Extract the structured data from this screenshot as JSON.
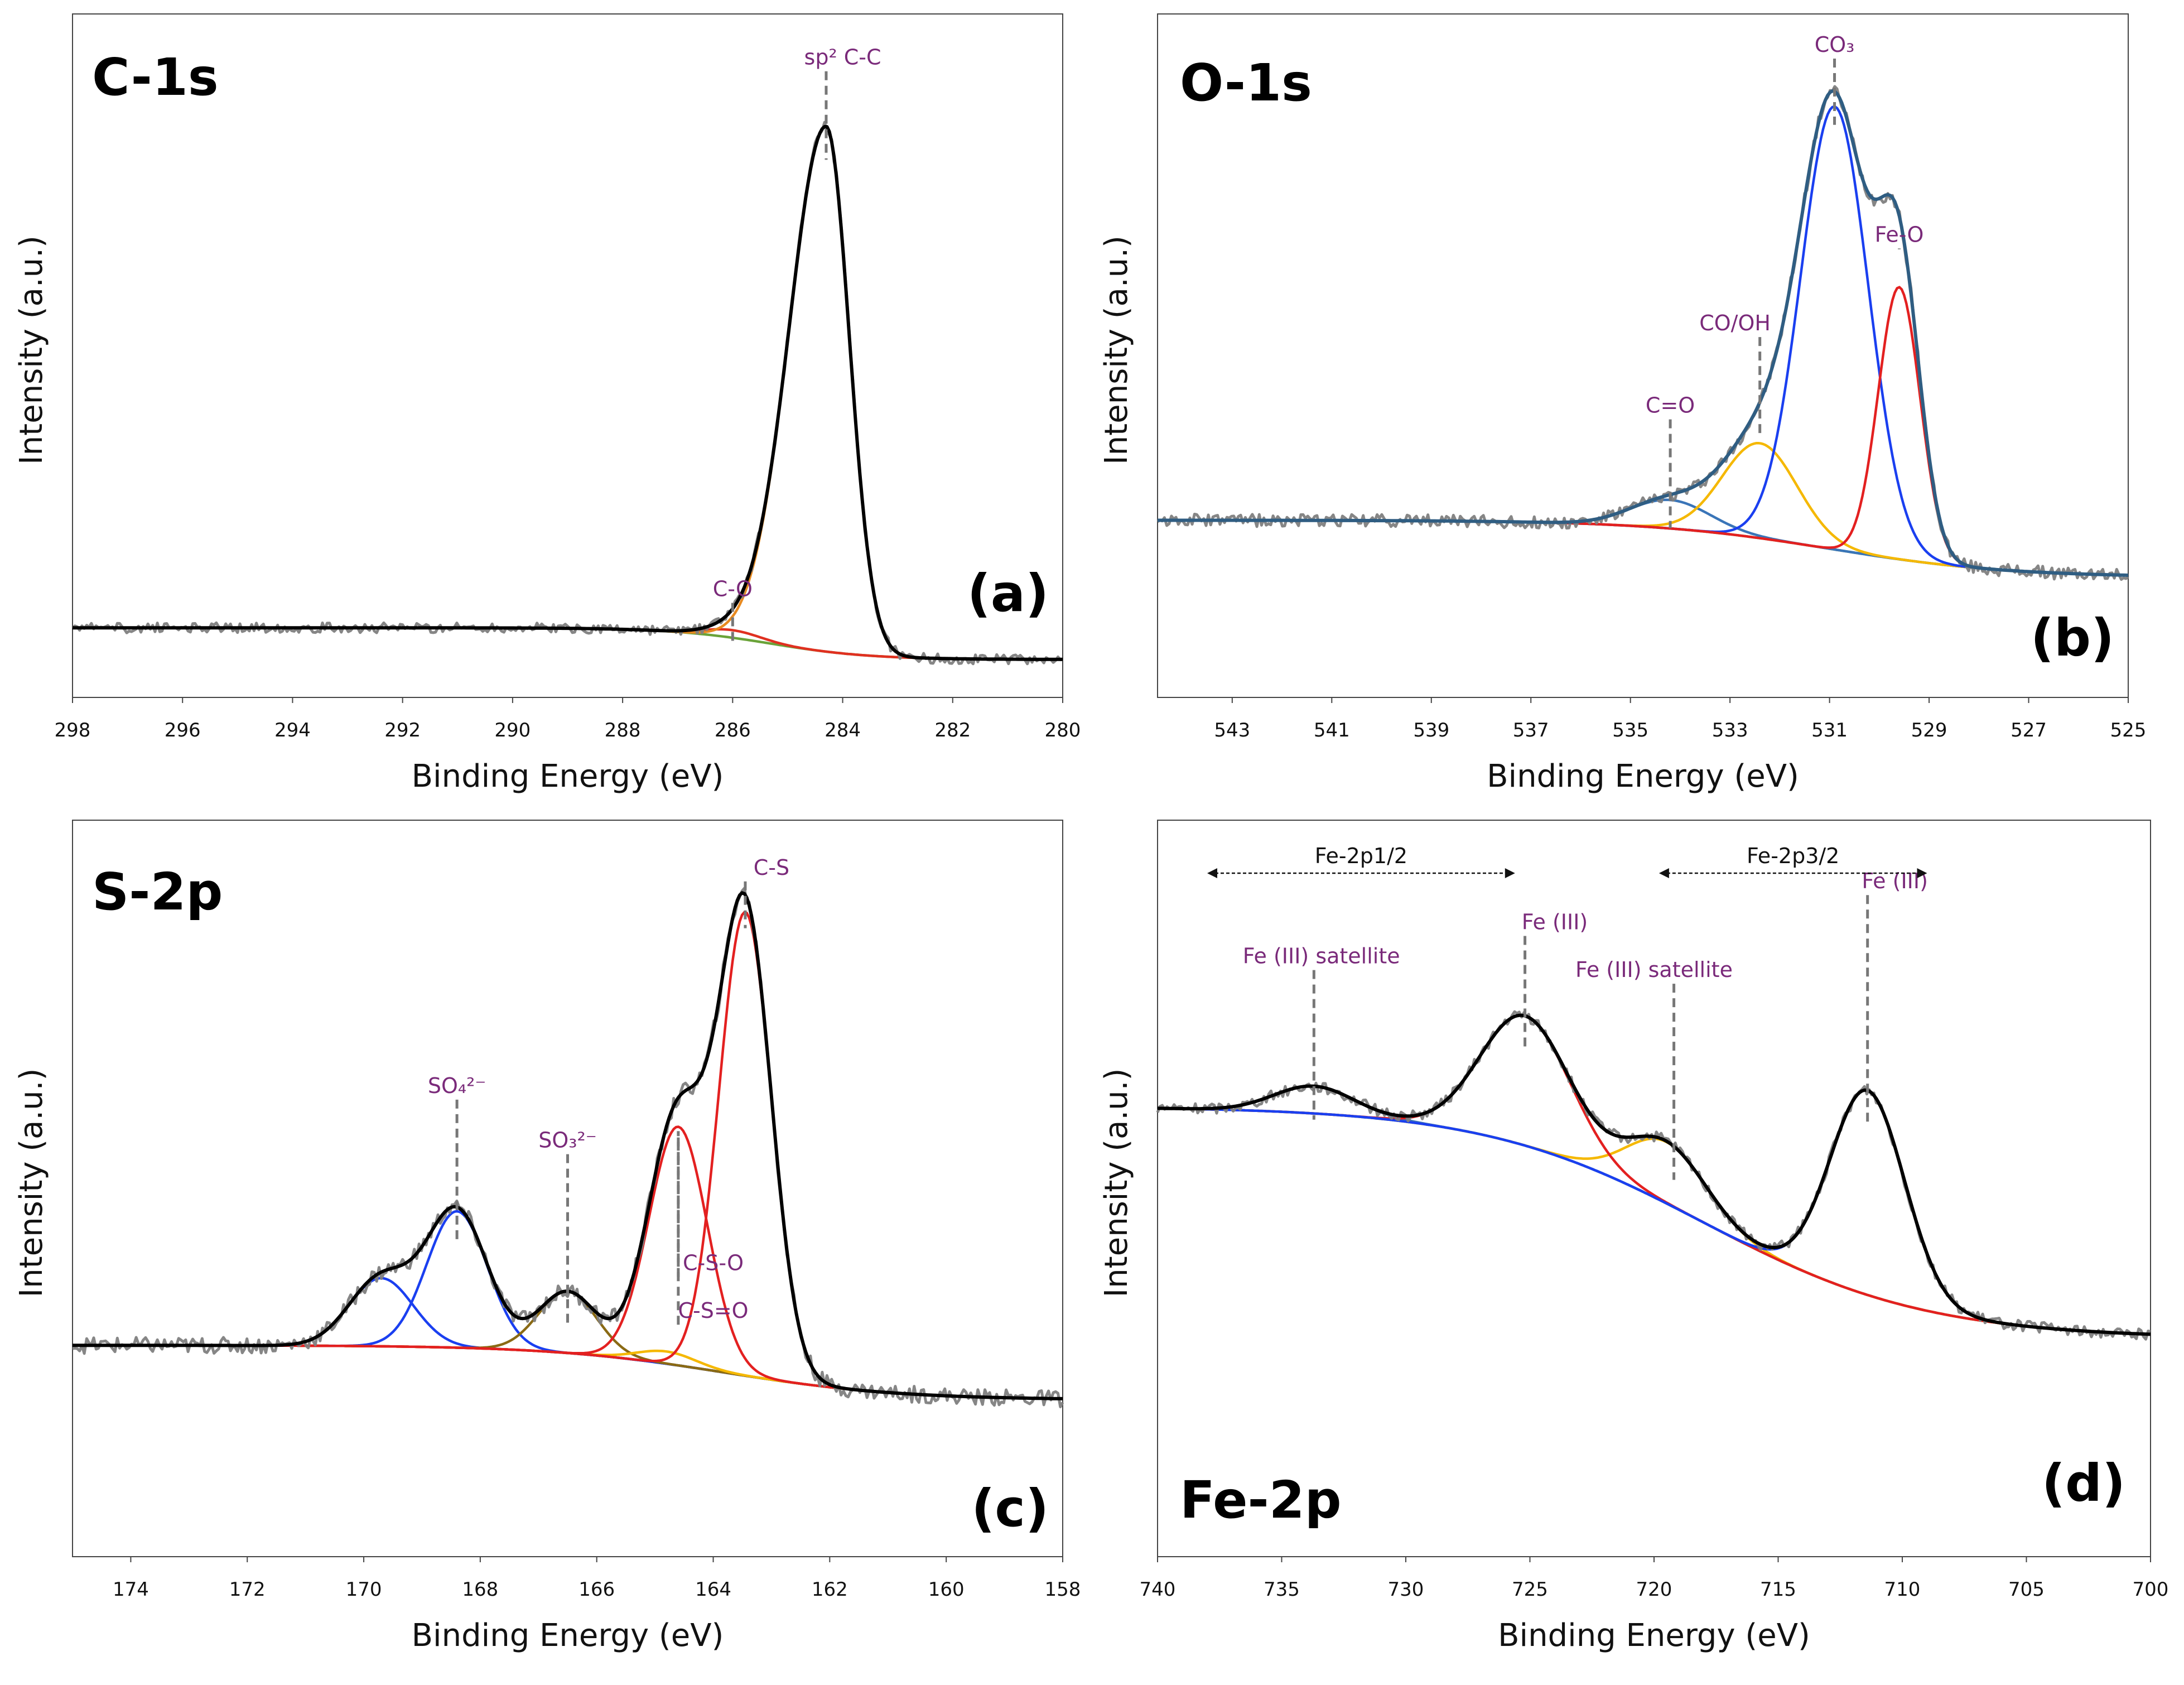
{
  "chart_data": [
    {
      "type": "line",
      "panel_name": "C-1s",
      "panel_letter": "(a)",
      "xlabel": "Binding Energy (eV)",
      "ylabel": "Intensity (a.u.)",
      "xlim": [
        298,
        280
      ],
      "ylim": [
        0,
        1.08
      ],
      "xticks": [
        "298",
        "296",
        "294",
        "292",
        "290",
        "288",
        "286",
        "284",
        "282",
        "280"
      ],
      "series": [
        {
          "name": "background",
          "color": "#6aa339",
          "kind": "background",
          "params": {
            "hi": 0.11,
            "lo": 0.06,
            "center": 285.3,
            "width": 0.9
          }
        },
        {
          "name": "C-O",
          "color": "#e03020",
          "kind": "peak",
          "params": {
            "center": 286.0,
            "amp": 0.012,
            "sigma": 0.5,
            "ref": "background"
          }
        },
        {
          "name": "sp2 C-C",
          "color": "#e88a20",
          "kind": "peak",
          "params": {
            "center": 284.3,
            "amp": 0.83,
            "sigma": 0.42,
            "tail": 1.6,
            "ref": "background"
          }
        },
        {
          "name": "envelope",
          "color": "#000000",
          "kind": "envelope"
        },
        {
          "name": "raw",
          "color": "#808080",
          "kind": "raw",
          "params": {
            "noise": 0.008
          }
        }
      ],
      "annotations": [
        {
          "text": "sp² C-C",
          "x": 284.3,
          "label_x": 284.0,
          "label_y": 1.0
        },
        {
          "text": "C-O",
          "x": 286.0,
          "label_x": 286.0,
          "label_y": 0.16
        }
      ]
    },
    {
      "type": "line",
      "panel_name": "O-1s",
      "panel_letter": "(b)",
      "xlabel": "Binding Energy  (eV)",
      "ylabel": "Intensity (a.u.)",
      "xlim": [
        544.5,
        525
      ],
      "ylim": [
        0,
        1.08
      ],
      "xticks": [
        "543",
        "541",
        "539",
        "537",
        "535",
        "533",
        "531",
        "529",
        "527",
        "525"
      ],
      "series": [
        {
          "name": "background",
          "color": "#6aa339",
          "kind": "background",
          "params": {
            "hi": 0.28,
            "lo": 0.19,
            "center": 531.0,
            "width": 1.8
          }
        },
        {
          "name": "C=O",
          "color": "#3a75b8",
          "kind": "peak",
          "params": {
            "center": 534.2,
            "amp": 0.045,
            "sigma": 0.8,
            "ref": "background"
          }
        },
        {
          "name": "CO/OH",
          "color": "#f5b800",
          "kind": "peak",
          "params": {
            "center": 532.4,
            "amp": 0.15,
            "sigma": 0.75,
            "ref": "background"
          }
        },
        {
          "name": "CO3",
          "color": "#1a3ff0",
          "kind": "peak",
          "params": {
            "center": 530.9,
            "amp": 0.7,
            "sigma": 0.68,
            "ref": "background"
          }
        },
        {
          "name": "Fe-O",
          "color": "#e32020",
          "kind": "peak",
          "params": {
            "center": 529.6,
            "amp": 0.43,
            "sigma": 0.42,
            "ref": "background"
          }
        },
        {
          "name": "envelope",
          "color": "#2f5d82",
          "kind": "envelope"
        },
        {
          "name": "raw",
          "color": "#808080",
          "kind": "raw",
          "params": {
            "noise": 0.01
          }
        }
      ],
      "annotations": [
        {
          "text": "CO₃",
          "x": 530.9,
          "label_x": 530.9,
          "label_y": 1.02
        },
        {
          "text": "Fe-O",
          "x": 529.6,
          "label_x": 529.6,
          "label_y": 0.72
        },
        {
          "text": "CO/OH",
          "x": 532.4,
          "label_x": 532.9,
          "label_y": 0.58
        },
        {
          "text": "C=O",
          "x": 534.2,
          "label_x": 534.2,
          "label_y": 0.45
        }
      ]
    },
    {
      "type": "line",
      "panel_name": "S-2p",
      "panel_letter": "(c)",
      "xlabel": "Binding Energy (eV)",
      "ylabel": "Intensity (a.u.)",
      "xlim": [
        175,
        158
      ],
      "ylim": [
        0,
        1.08
      ],
      "xticks": [
        "174",
        "172",
        "170",
        "168",
        "166",
        "164",
        "162",
        "160",
        "158"
      ],
      "series": [
        {
          "name": "background",
          "color": "#8a6a14",
          "kind": "background",
          "params": {
            "hi": 0.31,
            "lo": 0.23,
            "center": 163.8,
            "width": 1.5
          }
        },
        {
          "name": "SO4 2- (a)",
          "color": "#1a3ff0",
          "kind": "peak",
          "params": {
            "center": 169.7,
            "amp": 0.1,
            "sigma": 0.55,
            "ref": "background"
          }
        },
        {
          "name": "SO4 2- (b)",
          "color": "#1a3ff0",
          "kind": "peak",
          "params": {
            "center": 168.4,
            "amp": 0.2,
            "sigma": 0.52,
            "ref": "background"
          }
        },
        {
          "name": "SO3 2-",
          "color": "#8a6a14",
          "kind": "peak",
          "params": {
            "center": 166.5,
            "amp": 0.09,
            "sigma": 0.5,
            "ref": "background"
          }
        },
        {
          "name": "C-S=O",
          "color": "#f5b800",
          "kind": "peak",
          "params": {
            "center": 164.8,
            "amp": 0.018,
            "sigma": 0.5,
            "ref": "background"
          }
        },
        {
          "name": "C-S-O",
          "color": "#e32020",
          "kind": "peak",
          "params": {
            "center": 164.6,
            "amp": 0.35,
            "sigma": 0.5,
            "ref": "background"
          }
        },
        {
          "name": "C-S",
          "color": "#e32020",
          "kind": "peak",
          "params": {
            "center": 163.45,
            "amp": 0.68,
            "sigma": 0.45,
            "ref": "background"
          }
        },
        {
          "name": "envelope",
          "color": "#000000",
          "kind": "envelope"
        },
        {
          "name": "raw",
          "color": "#808080",
          "kind": "raw",
          "params": {
            "noise": 0.012
          }
        }
      ],
      "annotations": [
        {
          "text": "C-S",
          "x": 163.45,
          "label_x": 163.0,
          "label_y": 1.0
        },
        {
          "text": "SO₄²⁻",
          "x": 168.4,
          "label_x": 168.4,
          "label_y": 0.68
        },
        {
          "text": "SO₃²⁻",
          "x": 166.5,
          "label_x": 166.5,
          "label_y": 0.6
        },
        {
          "text": "C-S-O",
          "x": 164.6,
          "label_x": 164.0,
          "label_y": 0.42
        },
        {
          "text": "C-S=O",
          "x": 164.6,
          "label_x": 164.0,
          "label_y": 0.35
        }
      ]
    },
    {
      "type": "line",
      "panel_name": "Fe-2p",
      "panel_letter": "(d)",
      "xlabel": "Binding Energy (eV)",
      "ylabel": "Intensity (a.u.)",
      "xlim": [
        740,
        700
      ],
      "ylim": [
        0,
        1.08
      ],
      "xticks": [
        "740",
        "735",
        "730",
        "725",
        "720",
        "715",
        "710",
        "705",
        "700"
      ],
      "series": [
        {
          "name": "background",
          "color": "#6aa339",
          "kind": "background",
          "params": {
            "hi": 0.66,
            "lo": 0.32,
            "center": 718.0,
            "width": 4.5
          }
        },
        {
          "name": "Fe (III) satellite 2p1/2",
          "color": "#3a75b8",
          "kind": "peak",
          "params": {
            "center": 733.7,
            "amp": 0.04,
            "sigma": 1.6,
            "ref": "background"
          }
        },
        {
          "name": "Fe (III) satellite 2p3/2",
          "color": "#f5b800",
          "kind": "peak",
          "params": {
            "center": 719.5,
            "amp": 0.09,
            "sigma": 1.6,
            "ref": "background"
          }
        },
        {
          "name": "Fe (III) 2p1/2",
          "color": "#e32020",
          "kind": "peak",
          "params": {
            "center": 725.2,
            "amp": 0.19,
            "sigma": 1.8,
            "ref": "background"
          }
        },
        {
          "name": "Fe (III) 2p3/2",
          "color": "#1a3ff0",
          "kind": "peak",
          "params": {
            "center": 711.4,
            "amp": 0.3,
            "sigma": 1.5,
            "ref": "background"
          }
        },
        {
          "name": "envelope",
          "color": "#000000",
          "kind": "envelope"
        },
        {
          "name": "raw",
          "color": "#808080",
          "kind": "raw",
          "params": {
            "noise": 0.008
          }
        }
      ],
      "annotations": [
        {
          "text": "Fe (III)",
          "x": 711.4,
          "label_x": 710.3,
          "label_y": 0.98
        },
        {
          "text": "Fe (III)",
          "x": 725.2,
          "label_x": 724.0,
          "label_y": 0.92
        },
        {
          "text": "Fe (III) satellite",
          "x": 733.7,
          "label_x": 733.4,
          "label_y": 0.87
        },
        {
          "text": "Fe (III) satellite",
          "x": 719.2,
          "label_x": 720.0,
          "label_y": 0.85
        }
      ],
      "ranges": [
        {
          "label": "Fe-2p1/2",
          "from": 738,
          "to": 725.6
        },
        {
          "label": "Fe-2p3/2",
          "from": 719.8,
          "to": 709
        }
      ]
    }
  ]
}
